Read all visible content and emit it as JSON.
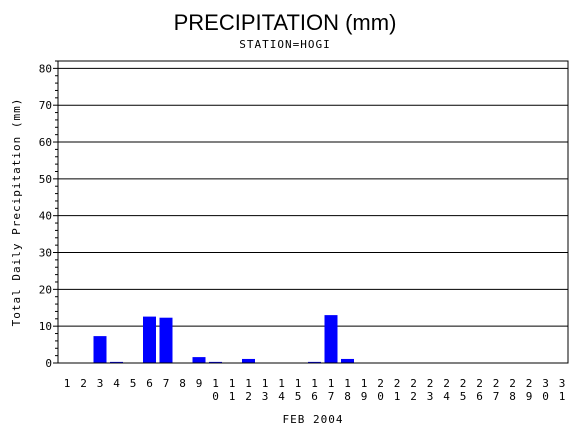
{
  "chart_data": {
    "type": "bar",
    "title": "PRECIPITATION (mm)",
    "subtitle": "STATION=HOGI",
    "xlabel": "FEB 2004",
    "ylabel": "Total Daily Precipitation (mm)",
    "ylim": [
      0,
      82
    ],
    "yticks": [
      0,
      10,
      20,
      30,
      40,
      50,
      60,
      70,
      80
    ],
    "grid": true,
    "bar_color": "#0000ff",
    "categories": [
      "1",
      "2",
      "3",
      "4",
      "5",
      "6",
      "7",
      "8",
      "9",
      "10",
      "11",
      "12",
      "13",
      "14",
      "15",
      "16",
      "17",
      "18",
      "19",
      "20",
      "21",
      "22",
      "23",
      "24",
      "25",
      "26",
      "27",
      "28",
      "29",
      "30",
      "31"
    ],
    "values": [
      0,
      0,
      7.3,
      0.3,
      0,
      12.6,
      12.3,
      0,
      1.6,
      0.3,
      0,
      1.1,
      0,
      0,
      0,
      0.3,
      13.0,
      1.1,
      0,
      0,
      0,
      0,
      0,
      0,
      0,
      0,
      0,
      0,
      0,
      0,
      0
    ]
  }
}
